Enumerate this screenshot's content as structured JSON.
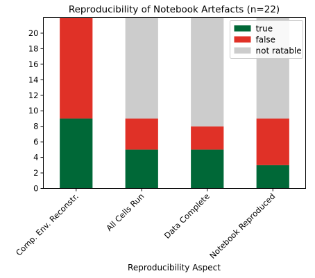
{
  "chart_data": {
    "type": "bar",
    "stacked": true,
    "title": "Reproducibility of Notebook Artefacts (n=22)",
    "xlabel": "Reproducibility Aspect",
    "ylabel": "",
    "categories": [
      "Comp. Env. Reconstr.",
      "All Cells Run",
      "Data Complete",
      "Notebook Reproduced"
    ],
    "series": [
      {
        "name": "true",
        "values": [
          9,
          5,
          5,
          3
        ],
        "color": "#006837"
      },
      {
        "name": "false",
        "values": [
          13,
          4,
          3,
          6
        ],
        "color": "#e03127"
      },
      {
        "name": "not ratable",
        "values": [
          0,
          13,
          14,
          13
        ],
        "color": "#cccccc"
      }
    ],
    "ylim": [
      0,
      22
    ],
    "yticks": [
      0,
      2,
      4,
      6,
      8,
      10,
      12,
      14,
      16,
      18,
      20
    ],
    "grid": false,
    "legend_position": "top-right"
  }
}
